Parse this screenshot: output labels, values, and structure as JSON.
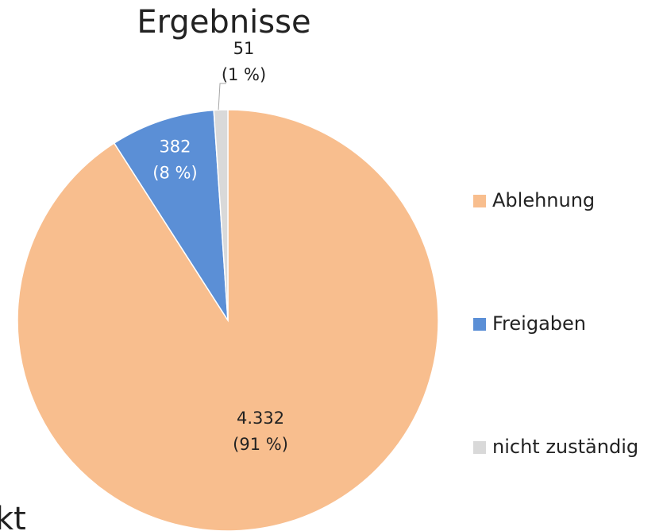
{
  "chart_data": {
    "type": "pie",
    "title": "Ergebnisse",
    "categories": [
      "Ablehnung",
      "Freigaben",
      "nicht zuständig"
    ],
    "values": [
      4332,
      382,
      51
    ],
    "value_labels": [
      "4.332",
      "382",
      "51"
    ],
    "percents": [
      91,
      8,
      1
    ],
    "percent_labels": [
      "(91 %)",
      "(8 %)",
      "(1 %)"
    ],
    "colors": [
      "#F8BE8E",
      "#5B8FD6",
      "#D9D9D9"
    ],
    "legend": "right",
    "cropped_text": "kt"
  }
}
